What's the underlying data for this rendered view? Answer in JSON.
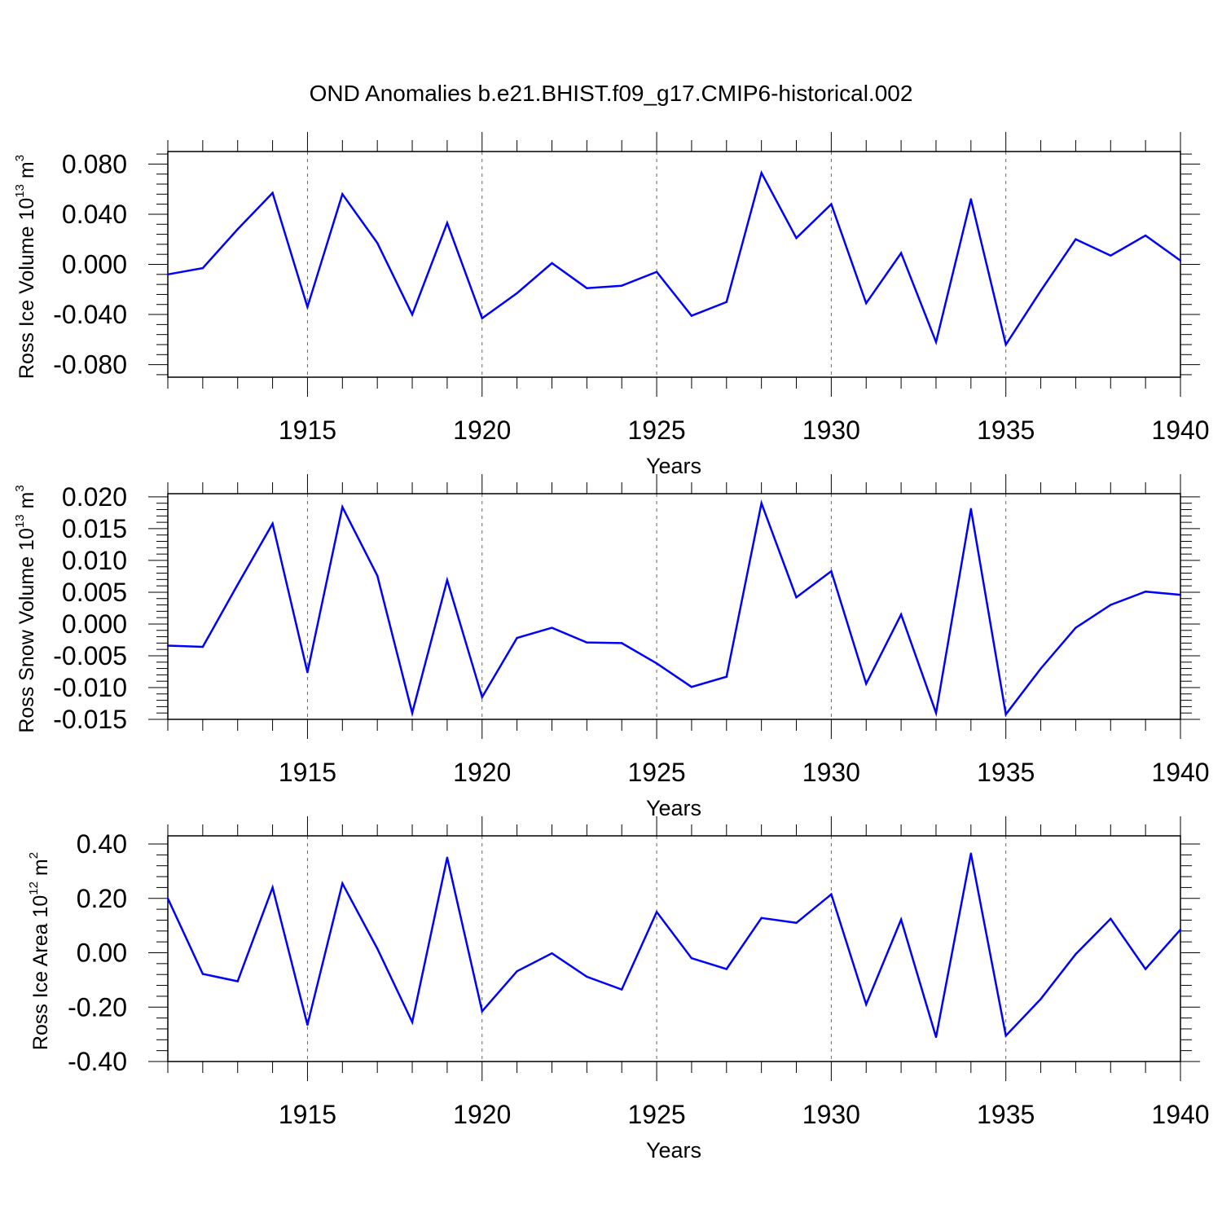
{
  "title": "OND Anomalies b.e21.BHIST.f09_g17.CMIP6-historical.002",
  "colors": {
    "line": "#0000ff",
    "axis": "#000000",
    "grid": "#666666"
  },
  "chart_data": [
    {
      "type": "line",
      "xlabel": "Years",
      "ylabel_main": "Ross Ice Volume 10",
      "ylabel_exp": "13",
      "ylabel_unit": " m",
      "ylabel_unit_exp": "3",
      "xlim": [
        1911,
        1940
      ],
      "ylim": [
        -0.09,
        0.09
      ],
      "yticks": [
        -0.08,
        -0.04,
        0.0,
        0.04,
        0.08
      ],
      "ytick_labels": [
        "-0.080",
        "-0.040",
        "0.000",
        "0.040",
        "0.080"
      ],
      "xticks": [
        1915,
        1920,
        1925,
        1930,
        1935,
        1940
      ],
      "xtick_labels": [
        "1915",
        "1920",
        "1925",
        "1930",
        "1935",
        "1940"
      ],
      "x": [
        1911,
        1912,
        1913,
        1914,
        1915,
        1916,
        1917,
        1918,
        1919,
        1920,
        1921,
        1922,
        1923,
        1924,
        1925,
        1926,
        1927,
        1928,
        1929,
        1930,
        1931,
        1932,
        1933,
        1934,
        1935,
        1936,
        1937,
        1938,
        1939,
        1940
      ],
      "values": [
        -0.008,
        -0.003,
        0.028,
        0.057,
        -0.034,
        0.056,
        0.017,
        -0.04,
        0.033,
        -0.043,
        -0.023,
        0.001,
        -0.019,
        -0.017,
        -0.006,
        -0.041,
        -0.03,
        0.073,
        0.021,
        0.048,
        -0.031,
        0.009,
        -0.062,
        0.052,
        -0.064,
        -0.021,
        0.02,
        0.007,
        0.023,
        0.003
      ]
    },
    {
      "type": "line",
      "xlabel": "Years",
      "ylabel_main": "Ross Snow Volume 10",
      "ylabel_exp": "13",
      "ylabel_unit": " m",
      "ylabel_unit_exp": "3",
      "xlim": [
        1911,
        1940
      ],
      "ylim": [
        -0.015,
        0.0205
      ],
      "yticks": [
        -0.015,
        -0.01,
        -0.005,
        0.0,
        0.005,
        0.01,
        0.015,
        0.02
      ],
      "ytick_labels": [
        "-0.015",
        "-0.010",
        "-0.005",
        "0.000",
        "0.005",
        "0.010",
        "0.015",
        "0.020"
      ],
      "xticks": [
        1915,
        1920,
        1925,
        1930,
        1935,
        1940
      ],
      "xtick_labels": [
        "1915",
        "1920",
        "1925",
        "1930",
        "1935",
        "1940"
      ],
      "x": [
        1911,
        1912,
        1913,
        1914,
        1915,
        1916,
        1917,
        1918,
        1919,
        1920,
        1921,
        1922,
        1923,
        1924,
        1925,
        1926,
        1927,
        1928,
        1929,
        1930,
        1931,
        1932,
        1933,
        1934,
        1935,
        1936,
        1937,
        1938,
        1939,
        1940
      ],
      "values": [
        -0.0034,
        -0.0036,
        0.0062,
        0.0158,
        -0.0076,
        0.0184,
        0.0076,
        -0.014,
        0.0069,
        -0.0115,
        -0.0022,
        -0.0006,
        -0.0029,
        -0.003,
        -0.0062,
        -0.0099,
        -0.0083,
        0.019,
        0.0042,
        0.0083,
        -0.0094,
        0.0015,
        -0.014,
        0.0181,
        -0.0142,
        -0.007,
        -0.0006,
        0.003,
        0.0051,
        0.0046
      ]
    },
    {
      "type": "line",
      "xlabel": "Years",
      "ylabel_main": "Ross Ice Area 10",
      "ylabel_exp": "12",
      "ylabel_unit": " m",
      "ylabel_unit_exp": "2",
      "xlim": [
        1911,
        1940
      ],
      "ylim": [
        -0.4,
        0.43
      ],
      "yticks": [
        -0.4,
        -0.2,
        0.0,
        0.2,
        0.4
      ],
      "ytick_labels": [
        "-0.40",
        "-0.20",
        "0.00",
        "0.20",
        "0.40"
      ],
      "xticks": [
        1915,
        1920,
        1925,
        1930,
        1935,
        1940
      ],
      "xtick_labels": [
        "1915",
        "1920",
        "1925",
        "1930",
        "1935",
        "1940"
      ],
      "x": [
        1911,
        1912,
        1913,
        1914,
        1915,
        1916,
        1917,
        1918,
        1919,
        1920,
        1921,
        1922,
        1923,
        1924,
        1925,
        1926,
        1927,
        1928,
        1929,
        1930,
        1931,
        1932,
        1933,
        1934,
        1935,
        1936,
        1937,
        1938,
        1939,
        1940
      ],
      "values": [
        0.2,
        -0.078,
        -0.105,
        0.24,
        -0.265,
        0.255,
        0.015,
        -0.255,
        0.35,
        -0.215,
        -0.068,
        -0.002,
        -0.088,
        -0.135,
        0.15,
        -0.02,
        -0.06,
        0.128,
        0.11,
        0.215,
        -0.19,
        0.122,
        -0.31,
        0.365,
        -0.305,
        -0.17,
        -0.005,
        0.125,
        -0.06,
        0.085
      ]
    }
  ]
}
